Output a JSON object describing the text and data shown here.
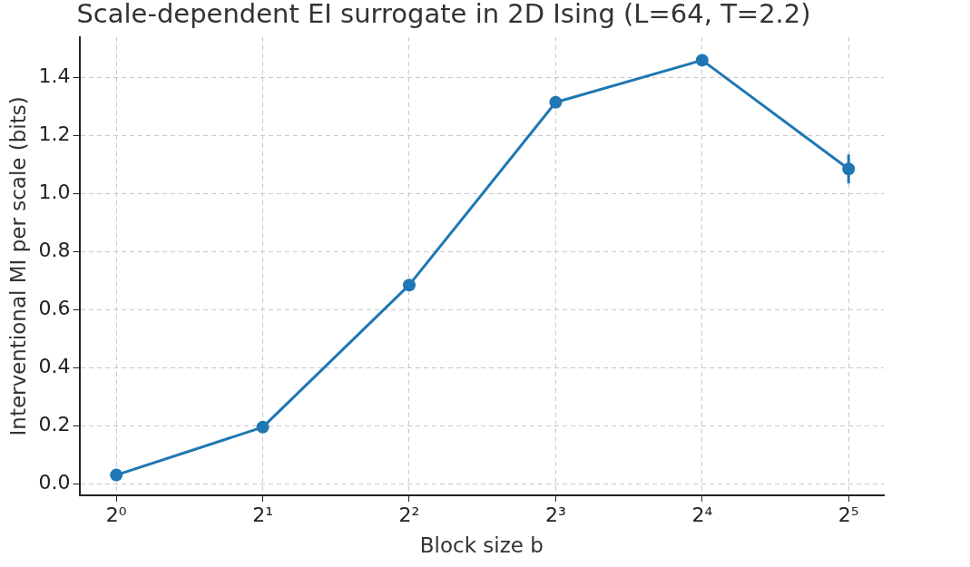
{
  "chart_data": {
    "type": "line",
    "title": "Scale-dependent EI surrogate in 2D Ising (L=64, T=2.2)",
    "xlabel": "Block size b",
    "ylabel": "Interventional MI per scale (bits)",
    "x": [
      1,
      2,
      4,
      8,
      16,
      32
    ],
    "series": [
      {
        "color": "#1f77b4",
        "values": [
          0.03,
          0.195,
          0.685,
          1.315,
          1.46,
          1.085
        ],
        "errors": [
          null,
          null,
          null,
          null,
          null,
          0.05
        ]
      }
    ],
    "log": "x",
    "xlim": [
      0.84,
      37.8
    ],
    "xticks": [
      {
        "value": 1,
        "label": "2⁰"
      },
      {
        "value": 2,
        "label": "2¹"
      },
      {
        "value": 4,
        "label": "2²"
      },
      {
        "value": 8,
        "label": "2³"
      },
      {
        "value": 16,
        "label": "2⁴"
      },
      {
        "value": 32,
        "label": "2⁵"
      }
    ],
    "ylim": [
      -0.04,
      1.54
    ],
    "yticks": [
      {
        "value": 0,
        "label": "0.0"
      },
      {
        "value": 0.2,
        "label": "0.2"
      },
      {
        "value": 0.4,
        "label": "0.4"
      },
      {
        "value": 0.6,
        "label": "0.6"
      },
      {
        "value": 0.8,
        "label": "0.8"
      },
      {
        "value": 1,
        "label": "1.0"
      },
      {
        "value": 1.2,
        "label": "1.2"
      },
      {
        "value": 1.4,
        "label": "1.4"
      }
    ],
    "grid": true,
    "marker": "circle",
    "line_style": "solid",
    "legend": false
  }
}
